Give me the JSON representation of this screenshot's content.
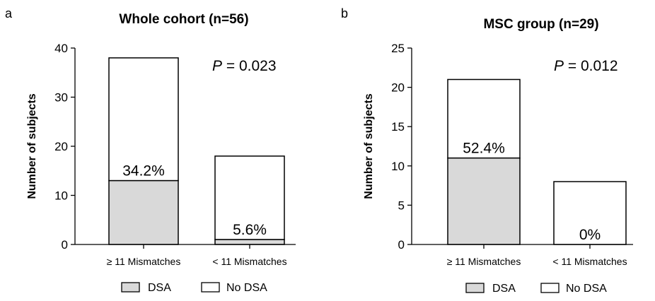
{
  "colors": {
    "dsa": "#d9d9d9",
    "no_dsa": "#ffffff",
    "stroke": "#000000"
  },
  "legend": {
    "dsa": "DSA",
    "no_dsa": "No DSA"
  },
  "chart_data": [
    {
      "type": "bar",
      "stacked": true,
      "panel_label": "a",
      "title": "Whole cohort (n=56)",
      "ylabel": "Number of subjects",
      "xlabel": "",
      "ylim": [
        0,
        40
      ],
      "yticks": [
        0,
        10,
        20,
        30,
        40
      ],
      "categories": [
        "≥ 11 Mismatches",
        "< 11 Mismatches"
      ],
      "series": [
        {
          "name": "DSA",
          "values": [
            13,
            1
          ]
        },
        {
          "name": "No DSA",
          "values": [
            25,
            17
          ]
        }
      ],
      "totals": [
        38,
        18
      ],
      "percent_labels": [
        "34.2%",
        "5.6%"
      ],
      "p_prefix": "P",
      "p_value": " = 0.023",
      "legend_position": "bottom"
    },
    {
      "type": "bar",
      "stacked": true,
      "panel_label": "b",
      "title": "MSC group (n=29)",
      "ylabel": "Number of subjects",
      "xlabel": "",
      "ylim": [
        0,
        25
      ],
      "yticks": [
        0,
        5,
        10,
        15,
        20,
        25
      ],
      "categories": [
        "≥ 11 Mismatches",
        "< 11 Mismatches"
      ],
      "series": [
        {
          "name": "DSA",
          "values": [
            11,
            0
          ]
        },
        {
          "name": "No DSA",
          "values": [
            10,
            8
          ]
        }
      ],
      "totals": [
        21,
        8
      ],
      "percent_labels": [
        "52.4%",
        "0%"
      ],
      "p_prefix": "P",
      "p_value": " = 0.012",
      "legend_position": "bottom"
    }
  ]
}
